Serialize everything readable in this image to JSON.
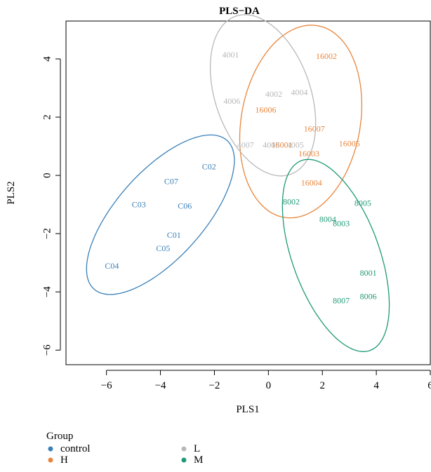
{
  "chart_data": {
    "type": "scatter",
    "title": "PLS−DA",
    "xlabel": "PLS1",
    "ylabel": "PLS2",
    "xlim": [
      -7.5,
      6
    ],
    "ylim": [
      -6.5,
      5.3
    ],
    "x_ticks": [
      -6,
      -4,
      -2,
      0,
      2,
      4,
      6
    ],
    "y_ticks": [
      -6,
      -4,
      -2,
      0,
      2,
      4
    ],
    "x_tick_labels": [
      "−6",
      "−4",
      "−2",
      "0",
      "2",
      "4",
      "6"
    ],
    "y_tick_labels": [
      "−6",
      "−4",
      "−2",
      "0",
      "2",
      "4"
    ],
    "grid": false,
    "legend": {
      "title": "Group",
      "placement": "bottom-left"
    },
    "series": [
      {
        "name": "control",
        "color": "#3a80b8",
        "points": [
          {
            "label": "C02",
            "x": -2.2,
            "y": 0.3
          },
          {
            "label": "C07",
            "x": -3.6,
            "y": -0.2
          },
          {
            "label": "C03",
            "x": -4.8,
            "y": -1.0
          },
          {
            "label": "C06",
            "x": -3.1,
            "y": -1.05
          },
          {
            "label": "C01",
            "x": -3.5,
            "y": -2.05
          },
          {
            "label": "C05",
            "x": -3.9,
            "y": -2.5
          },
          {
            "label": "C04",
            "x": -5.8,
            "y": -3.1
          }
        ],
        "ellipse": {
          "cx": -4.0,
          "cy": -1.35,
          "a": 3.55,
          "b": 1.55,
          "angle": 45
        }
      },
      {
        "name": "H",
        "color": "#e8853a",
        "points": [
          {
            "label": "16002",
            "x": 2.15,
            "y": 4.1
          },
          {
            "label": "16006",
            "x": -0.1,
            "y": 2.25
          },
          {
            "label": "16007",
            "x": 1.7,
            "y": 1.6
          },
          {
            "label": "16005",
            "x": 3.0,
            "y": 1.1
          },
          {
            "label": "16001",
            "x": 0.5,
            "y": 1.05
          },
          {
            "label": "16003",
            "x": 1.5,
            "y": 0.75
          },
          {
            "label": "16004",
            "x": 1.6,
            "y": -0.25
          }
        ],
        "ellipse": {
          "cx": 1.2,
          "cy": 1.85,
          "a": 3.35,
          "b": 2.2,
          "angle": 78
        }
      },
      {
        "name": "L",
        "color": "#b8b8b8",
        "points": [
          {
            "label": "4001",
            "x": -1.4,
            "y": 4.15
          },
          {
            "label": "4002",
            "x": 0.2,
            "y": 2.8
          },
          {
            "label": "4004",
            "x": 1.15,
            "y": 2.85
          },
          {
            "label": "4006",
            "x": -1.35,
            "y": 2.55
          },
          {
            "label": "4007",
            "x": -0.85,
            "y": 1.05
          },
          {
            "label": "4003",
            "x": 0.1,
            "y": 1.05
          },
          {
            "label": "4005",
            "x": 1.0,
            "y": 1.05
          }
        ],
        "ellipse": {
          "cx": -0.2,
          "cy": 2.75,
          "a": 2.9,
          "b": 1.75,
          "angle": 112
        }
      },
      {
        "name": "M",
        "color": "#1f9a76",
        "points": [
          {
            "label": "8002",
            "x": 0.85,
            "y": -0.9
          },
          {
            "label": "8005",
            "x": 3.5,
            "y": -0.95
          },
          {
            "label": "8004",
            "x": 2.2,
            "y": -1.5
          },
          {
            "label": "8003",
            "x": 2.7,
            "y": -1.65
          },
          {
            "label": "8001",
            "x": 3.7,
            "y": -3.35
          },
          {
            "label": "8007",
            "x": 2.7,
            "y": -4.3
          },
          {
            "label": "8006",
            "x": 3.7,
            "y": -4.15
          }
        ],
        "ellipse": {
          "cx": 2.5,
          "cy": -2.75,
          "a": 3.5,
          "b": 1.6,
          "angle": 112
        }
      }
    ]
  }
}
